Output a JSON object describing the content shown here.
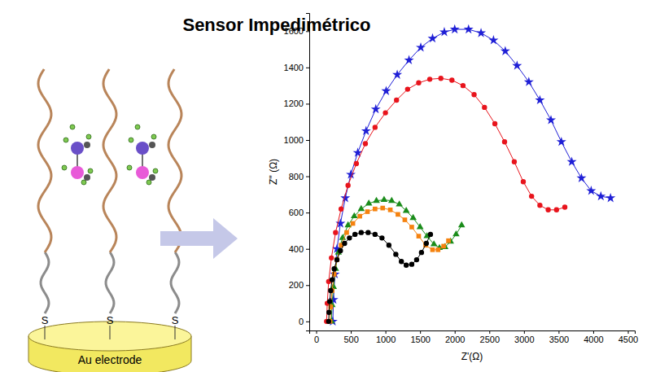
{
  "title": "Sensor Impedimétrico",
  "diagram": {
    "electrode_label": "Au electrode",
    "anchor_labels": [
      "S",
      "S",
      "S"
    ]
  },
  "chart_data": {
    "type": "line",
    "xlabel": "Z'(Ω)",
    "ylabel": "Z'' (Ω)",
    "xlim": [
      -100,
      4600
    ],
    "xticks": [
      0,
      500,
      1000,
      1500,
      2000,
      2500,
      3000,
      3500,
      4000,
      4500
    ],
    "ylim": [
      -50,
      1700
    ],
    "yticks": [
      0,
      200,
      400,
      600,
      800,
      1000,
      1200,
      1400,
      1600
    ],
    "grid": false,
    "series": [
      {
        "color": "#1f1fd6",
        "marker": "star",
        "x": [
          240,
          250,
          270,
          300,
          350,
          420,
          500,
          600,
          720,
          860,
          1010,
          1170,
          1340,
          1510,
          1680,
          1850,
          2000,
          2200,
          2380,
          2560,
          2730,
          2900,
          3070,
          3230,
          3390,
          3540,
          3690,
          3830,
          3970,
          4110,
          4250
        ],
        "values": [
          0,
          120,
          260,
          400,
          540,
          680,
          810,
          930,
          1050,
          1170,
          1270,
          1360,
          1440,
          1510,
          1560,
          1595,
          1610,
          1610,
          1590,
          1550,
          1490,
          1410,
          1320,
          1220,
          1110,
          990,
          880,
          790,
          720,
          690,
          680
        ]
      },
      {
        "color": "#e8141c",
        "marker": "circle",
        "x": [
          150,
          160,
          180,
          220,
          280,
          360,
          460,
          580,
          710,
          850,
          1000,
          1160,
          1320,
          1480,
          1640,
          1800,
          1960,
          2120,
          2280,
          2430,
          2580,
          2720,
          2860,
          2990,
          3110,
          3230,
          3350,
          3470,
          3590
        ],
        "values": [
          0,
          100,
          220,
          350,
          490,
          620,
          750,
          870,
          980,
          1070,
          1150,
          1220,
          1280,
          1315,
          1335,
          1340,
          1330,
          1300,
          1250,
          1180,
          1090,
          990,
          880,
          770,
          690,
          640,
          615,
          615,
          630
        ]
      },
      {
        "color": "#1a8c1a",
        "marker": "triangle",
        "x": [
          220,
          230,
          250,
          280,
          320,
          380,
          460,
          550,
          650,
          760,
          870,
          980,
          1090,
          1200,
          1300,
          1400,
          1500,
          1600,
          1700,
          1780,
          1860,
          1940,
          2020,
          2100
        ],
        "values": [
          0,
          90,
          190,
          290,
          380,
          460,
          530,
          580,
          620,
          650,
          665,
          670,
          665,
          645,
          610,
          570,
          520,
          470,
          425,
          405,
          410,
          440,
          480,
          530
        ]
      },
      {
        "color": "#f5820f",
        "marker": "square",
        "x": [
          200,
          210,
          230,
          260,
          300,
          360,
          440,
          530,
          630,
          740,
          850,
          960,
          1070,
          1180,
          1280,
          1380,
          1480,
          1580,
          1680,
          1760,
          1840,
          1910
        ],
        "values": [
          0,
          80,
          170,
          260,
          340,
          420,
          490,
          540,
          580,
          605,
          620,
          625,
          615,
          590,
          560,
          520,
          470,
          420,
          395,
          395,
          415,
          445
        ]
      },
      {
        "color": "#000000",
        "marker": "circle",
        "x": [
          180,
          185,
          195,
          210,
          230,
          260,
          300,
          350,
          410,
          480,
          560,
          650,
          750,
          850,
          950,
          1050,
          1150,
          1230,
          1300,
          1380,
          1450,
          1520,
          1590,
          1650
        ],
        "values": [
          0,
          50,
          110,
          170,
          230,
          290,
          340,
          390,
          430,
          460,
          480,
          490,
          490,
          480,
          460,
          420,
          370,
          330,
          310,
          315,
          340,
          380,
          430,
          480
        ]
      }
    ]
  }
}
